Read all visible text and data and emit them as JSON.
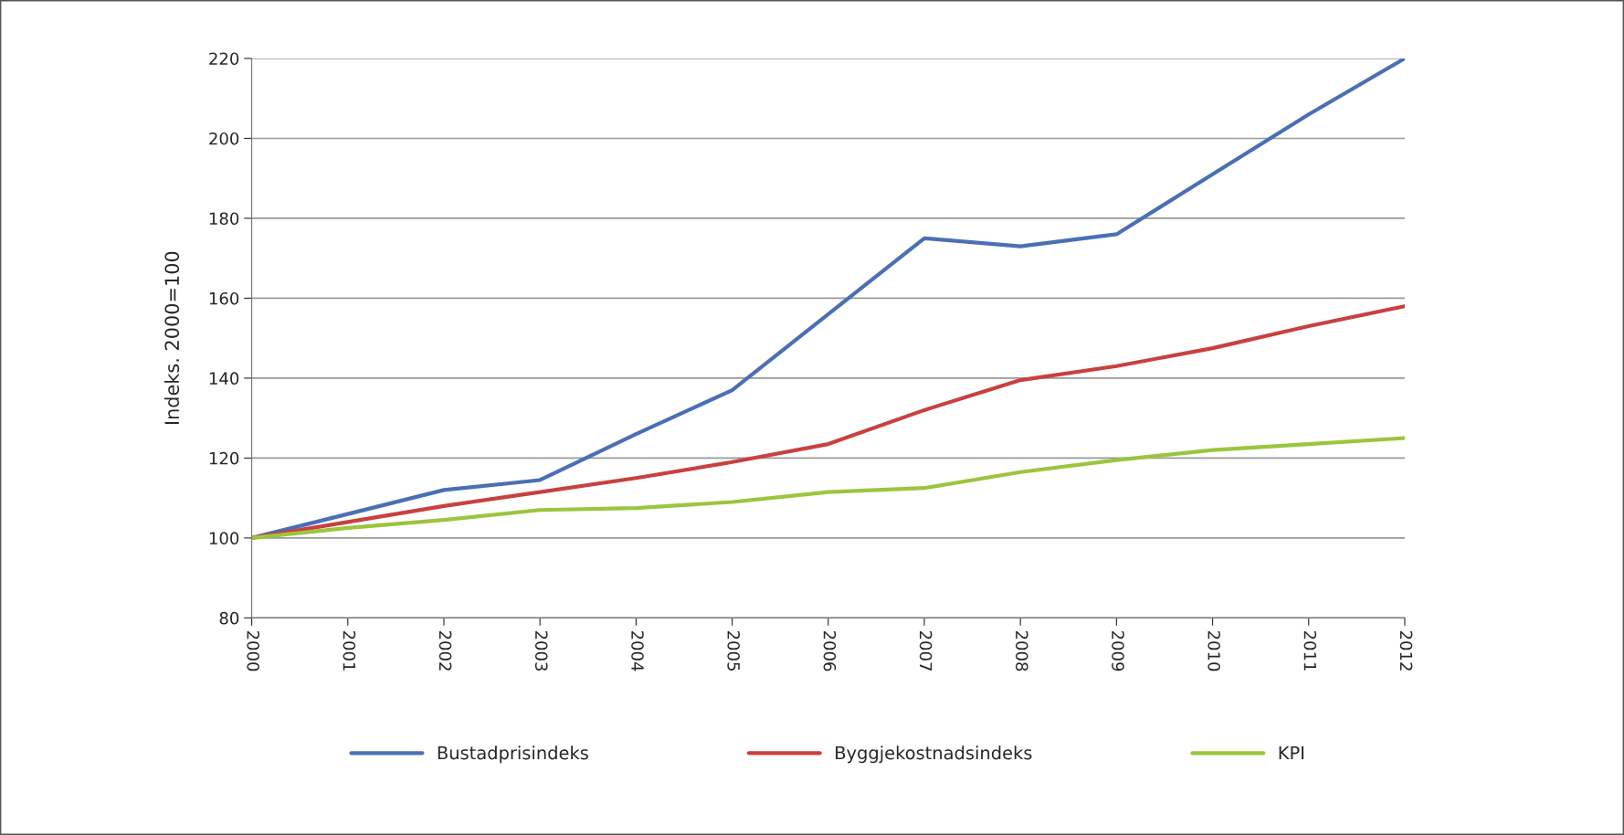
{
  "chart_data": {
    "type": "line",
    "ylabel": "Indeks. 2000=100",
    "categories": [
      "2000",
      "2001",
      "2002",
      "2003",
      "2004",
      "2005",
      "2006",
      "2007",
      "2008",
      "2009",
      "2010",
      "2011",
      "2012"
    ],
    "series": [
      {
        "name": "Bustadprisindeks",
        "color": "#4a6fb5",
        "values": [
          100,
          106,
          112,
          114.5,
          126,
          137,
          156,
          175,
          173,
          176,
          191,
          206,
          220
        ]
      },
      {
        "name": "Byggjekostnadsindeks",
        "color": "#c94040",
        "values": [
          100,
          104,
          108,
          111.5,
          115,
          119,
          123.5,
          132,
          139.5,
          143,
          147.5,
          153,
          158
        ]
      },
      {
        "name": "KPI",
        "color": "#9bc53d",
        "values": [
          100,
          102.5,
          104.5,
          107,
          107.5,
          109,
          111.5,
          112.5,
          116.5,
          119.5,
          122,
          123.5,
          125
        ]
      }
    ],
    "ylim": [
      80,
      220
    ],
    "yticks": [
      80,
      100,
      120,
      140,
      160,
      180,
      200,
      220
    ],
    "grid": "y",
    "legend": "bottom",
    "marker": "none",
    "line_style": "solid"
  }
}
